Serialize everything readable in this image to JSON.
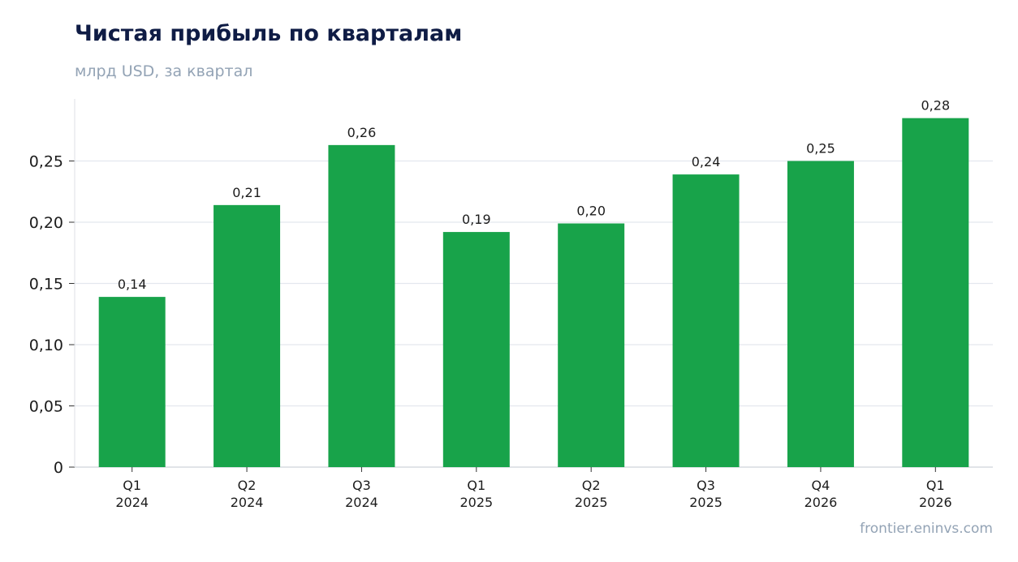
{
  "chart_data": {
    "type": "bar",
    "title": "Чистая прибыль по кварталам",
    "subtitle": "млрд USD, за квартал",
    "xlabel": "",
    "ylabel": "",
    "categories": [
      [
        "Q1",
        "2024"
      ],
      [
        "Q2",
        "2024"
      ],
      [
        "Q3",
        "2024"
      ],
      [
        "Q1",
        "2025"
      ],
      [
        "Q2",
        "2025"
      ],
      [
        "Q3",
        "2025"
      ],
      [
        "Q4",
        "2026"
      ],
      [
        "Q1",
        "2026"
      ]
    ],
    "values": [
      0.139,
      0.214,
      0.263,
      0.192,
      0.199,
      0.239,
      0.25,
      0.285
    ],
    "value_labels": [
      "0,14",
      "0,21",
      "0,26",
      "0,19",
      "0,20",
      "0,24",
      "0,25",
      "0,28"
    ],
    "ylim": [
      0,
      0.3
    ],
    "yticks": [
      0,
      0.05,
      0.1,
      0.15,
      0.2,
      0.25
    ],
    "ytick_labels": [
      "0",
      "0,05",
      "0,10",
      "0,15",
      "0,20",
      "0,25"
    ],
    "grid": true,
    "bar_color": "#18a34a",
    "source": "frontier.eninvs.com"
  }
}
